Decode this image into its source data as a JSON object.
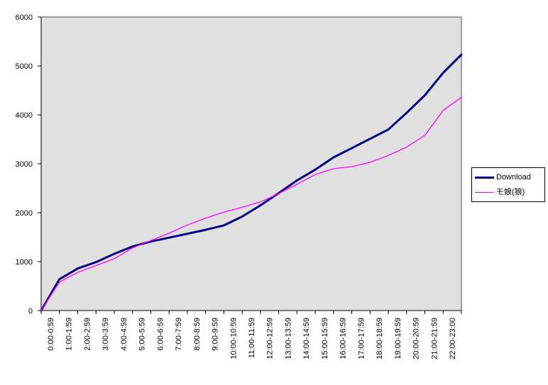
{
  "page": {
    "background": "#ffffff",
    "plot_background": "#e0e0e0",
    "plot_border_color": "#848484",
    "axis_color": "#000000",
    "text_color": "#000000"
  },
  "chart_data": {
    "type": "line",
    "title": "",
    "xlabel": "",
    "ylabel": "",
    "ylim": [
      0,
      6000
    ],
    "ytick_step": 1000,
    "ytick_labels": [
      "0",
      "1000",
      "2000",
      "3000",
      "4000",
      "5000",
      "6000"
    ],
    "grid": false,
    "legend_position": "right-outside",
    "x_labels": [
      "0:00-0:59",
      "1:00-1:59",
      "2:00-2:59",
      "3:00-3:59",
      "4:00-4:59",
      "5:00-5:59",
      "6:00-6:59",
      "7:00-7:59",
      "8:00-8:59",
      "9:00-9:59",
      "10:00-10:59",
      "11:00-11:59",
      "12:00-12:59",
      "13:00-13:59",
      "14:00-14:59",
      "15:00-15:59",
      "16:00-16:59",
      "17:00-17:59",
      "18:00-18:59",
      "19:00-19:59",
      "20:00-20:59",
      "21:00-21:59",
      "22:00-23:00"
    ],
    "x_labels_note": "interval labels sit between tick marks; each series starts with a 0 value on the y-axis",
    "series": [
      {
        "name": "Download",
        "color": "#000080",
        "stroke_width": 3,
        "values": [
          0,
          640,
          860,
          990,
          1160,
          1310,
          1410,
          1490,
          1570,
          1650,
          1740,
          1920,
          2150,
          2400,
          2660,
          2880,
          3130,
          3320,
          3510,
          3700,
          4040,
          4400,
          4860,
          5230
        ]
      },
      {
        "name": "モ娘(狼)",
        "color": "#ff00ff",
        "stroke_width": 1.3,
        "values": [
          0,
          580,
          780,
          920,
          1060,
          1280,
          1430,
          1580,
          1750,
          1890,
          2010,
          2110,
          2220,
          2390,
          2580,
          2780,
          2900,
          2940,
          3030,
          3170,
          3340,
          3580,
          4090,
          4360
        ]
      }
    ]
  }
}
